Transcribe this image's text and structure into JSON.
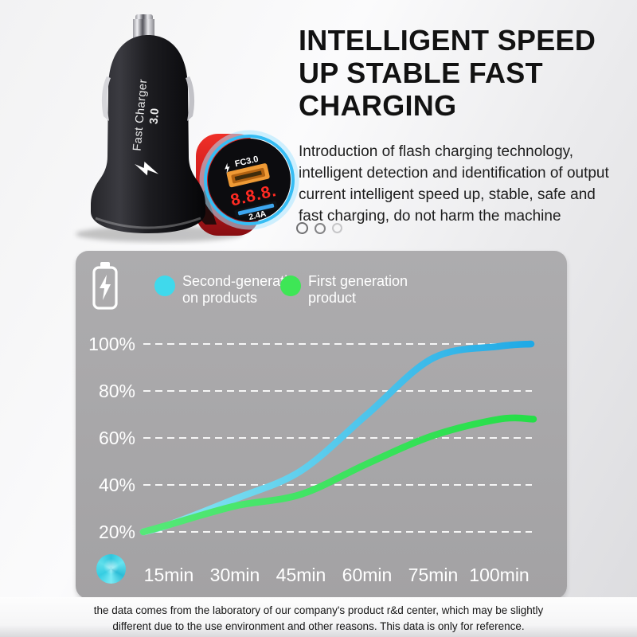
{
  "hero": {
    "title_lines": [
      "INTELLIGENT SPEED",
      "UP STABLE FAST",
      "CHARGING"
    ],
    "title_color": "#121212",
    "description_lines": [
      "Introduction of flash charging technology,",
      "intelligent detection and identification of output",
      "current intelligent speed up, stable, safe and",
      "fast charging, do not harm the machine"
    ],
    "carousel_dot_count": 3
  },
  "product": {
    "black_charger": {
      "label_line1": "Fast Charger",
      "label_line2": "3.0",
      "bolt_icon": "lightning"
    },
    "red_charger": {
      "fc_label": "FC3.0",
      "bolt_icon": "lightning",
      "display_digits": "8.8.8.",
      "amp_label": "2.4A"
    }
  },
  "chart_panel": {
    "background": "#a8a7a9",
    "battery_icon": "battery-charging",
    "legend": [
      {
        "line1": "Second-generati",
        "line2": "on products",
        "color": "#3fd9ec"
      },
      {
        "line1": "First generation",
        "line2": "product",
        "color": "#3ee656"
      }
    ],
    "disc_icon_color": "#35cfe3"
  },
  "chart_data": {
    "type": "line",
    "categories": [
      "15min",
      "30min",
      "45min",
      "60min",
      "75min",
      "100min"
    ],
    "y_ticks": [
      {
        "label": "100%",
        "value": 100
      },
      {
        "label": "80%",
        "value": 80
      },
      {
        "label": "60%",
        "value": 60
      },
      {
        "label": "40%",
        "value": 40
      },
      {
        "label": "20%",
        "value": 20
      }
    ],
    "ylim": [
      20,
      100
    ],
    "grid": "dashed-white",
    "legend_position": "top",
    "series": [
      {
        "name": "Second-generation products",
        "color_start": "#8ce9f2",
        "color_end": "#1fa9e6",
        "start_value": 20,
        "values": [
          23,
          34,
          46,
          70,
          94,
          99
        ],
        "end_value": 100
      },
      {
        "name": "First generation product",
        "color_start": "#55e878",
        "color_end": "#25de47",
        "start_value": 20,
        "values": [
          23,
          31,
          36,
          49,
          61,
          68
        ],
        "end_value": 68
      }
    ]
  },
  "footer": {
    "disclaimer_line1": "the data comes from the laboratory of our company's product r&d center, which may be slightly",
    "disclaimer_line2": "different due to the use environment and other reasons. This data is only for reference."
  }
}
